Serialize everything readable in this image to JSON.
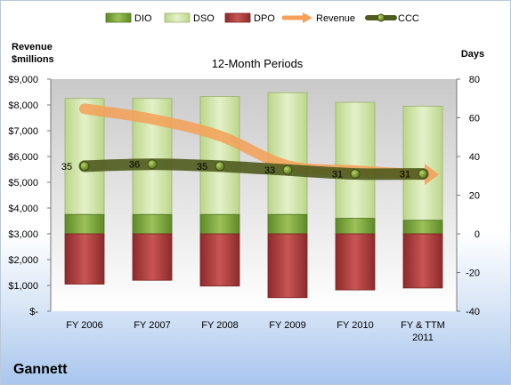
{
  "company": "Gannett",
  "chart_data": {
    "type": "bar",
    "title": "12-Month Periods",
    "left_axis_title": [
      "Revenue",
      "$millions"
    ],
    "right_axis_title": "Days",
    "categories": [
      [
        "FY 2006"
      ],
      [
        "FY 2007"
      ],
      [
        "FY 2008"
      ],
      [
        "FY 2009"
      ],
      [
        "FY 2010"
      ],
      [
        "FY & TTM",
        "2011"
      ]
    ],
    "left_axis": {
      "min": 0,
      "max": 9000,
      "ticks": [
        0,
        1000,
        2000,
        3000,
        4000,
        5000,
        6000,
        7000,
        8000,
        9000
      ],
      "tick_labels": [
        "$-",
        "$1,000",
        "$2,000",
        "$3,000",
        "$4,000",
        "$5,000",
        "$6,000",
        "$7,000",
        "$8,000",
        "$9,000"
      ]
    },
    "right_axis": {
      "min": -40,
      "max": 80,
      "ticks": [
        -40,
        -20,
        0,
        20,
        40,
        60,
        80
      ],
      "tick_labels": [
        "-40",
        "-20",
        "0",
        "20",
        "40",
        "60",
        "80"
      ]
    },
    "series": [
      {
        "name": "DIO",
        "type": "stacked-bar",
        "axis": "right",
        "color": "#7aa33c",
        "values": [
          10,
          10,
          10,
          10,
          8,
          7
        ]
      },
      {
        "name": "DSO",
        "type": "stacked-bar",
        "axis": "right",
        "color": "#d3e7ad",
        "values": [
          60,
          60,
          61,
          63,
          60,
          59
        ]
      },
      {
        "name": "DPO",
        "type": "negative-bar",
        "axis": "right",
        "color": "#b53f3f",
        "values": [
          -26,
          -24,
          -27,
          -33,
          -29,
          -28
        ]
      },
      {
        "name": "Revenue",
        "type": "line",
        "axis": "left",
        "color": "#f4a057",
        "values": [
          7850,
          7450,
          6800,
          5650,
          5450,
          5300
        ]
      },
      {
        "name": "CCC",
        "type": "line",
        "axis": "right",
        "color": "#4f5b1e",
        "values": [
          35,
          36,
          35,
          33,
          31,
          31
        ],
        "labels": [
          "35",
          "36",
          "35",
          "33",
          "31",
          "31"
        ]
      }
    ],
    "legend": {
      "position": "top"
    },
    "grid": false
  }
}
